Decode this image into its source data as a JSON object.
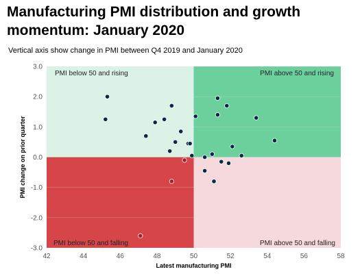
{
  "title": "Manufacturing PMI distribution and growth momentum: January 2020",
  "subtitle": "Vertical axis show change in PMI between Q4 2019 and January 2020",
  "colors": {
    "top_left": "#dbf2e6",
    "top_right": "#6cd09d",
    "bottom_left": "#d64547",
    "bottom_right": "#f6d9dc",
    "point_fill": "#0a2a44",
    "point_fill_red": "#b01c24",
    "grid": "#e6e6e6"
  },
  "chart_data": {
    "type": "scatter",
    "title": "Manufacturing PMI distribution and growth momentum: January 2020",
    "xlabel": "Latest manufacturing PMI",
    "ylabel": "PMI change on prior quarter",
    "xlim": [
      42,
      58
    ],
    "ylim": [
      -3.0,
      3.0
    ],
    "x_ticks": [
      "42",
      "44",
      "46",
      "48",
      "50",
      "52",
      "54",
      "56",
      "58"
    ],
    "y_ticks": [
      "3.0",
      "2.0",
      "1.0",
      "0.0",
      "-1.0",
      "-2.0",
      "-3.0"
    ],
    "x_tick_values": [
      42,
      44,
      46,
      48,
      50,
      52,
      54,
      56,
      58
    ],
    "y_tick_values": [
      3,
      2,
      1,
      0,
      -1,
      -2,
      -3
    ],
    "divider": {
      "x": 50,
      "y": 0
    },
    "quadrant_labels": {
      "top_left": "PMI below 50 and rising",
      "top_right": "PMI above 50 and rising",
      "bottom_left": "PMI below 50 and falling",
      "bottom_right": "PMI above 50 and falling"
    },
    "points": [
      {
        "x": 45.3,
        "y": 2.0
      },
      {
        "x": 45.2,
        "y": 1.25
      },
      {
        "x": 47.4,
        "y": 0.7
      },
      {
        "x": 47.9,
        "y": 1.15
      },
      {
        "x": 48.4,
        "y": 1.25
      },
      {
        "x": 48.8,
        "y": 1.7
      },
      {
        "x": 49.3,
        "y": 0.85
      },
      {
        "x": 49.0,
        "y": 0.5
      },
      {
        "x": 48.7,
        "y": 0.2
      },
      {
        "x": 49.7,
        "y": 0.45
      },
      {
        "x": 49.8,
        "y": 0.45
      },
      {
        "x": 49.9,
        "y": 0.05
      },
      {
        "x": 49.5,
        "y": -0.1
      },
      {
        "x": 50.1,
        "y": 1.35
      },
      {
        "x": 51.3,
        "y": 1.95
      },
      {
        "x": 51.8,
        "y": 1.7
      },
      {
        "x": 51.3,
        "y": 1.4
      },
      {
        "x": 53.4,
        "y": 1.3
      },
      {
        "x": 54.4,
        "y": 0.55
      },
      {
        "x": 52.1,
        "y": 0.35
      },
      {
        "x": 52.6,
        "y": 0.05
      },
      {
        "x": 51.0,
        "y": 0.1
      },
      {
        "x": 50.6,
        "y": 0.0
      },
      {
        "x": 51.5,
        "y": -0.15
      },
      {
        "x": 51.9,
        "y": -0.2
      },
      {
        "x": 50.6,
        "y": -0.45
      },
      {
        "x": 51.1,
        "y": -0.8
      },
      {
        "x": 48.8,
        "y": -0.8
      },
      {
        "x": 47.1,
        "y": -2.6
      }
    ]
  }
}
